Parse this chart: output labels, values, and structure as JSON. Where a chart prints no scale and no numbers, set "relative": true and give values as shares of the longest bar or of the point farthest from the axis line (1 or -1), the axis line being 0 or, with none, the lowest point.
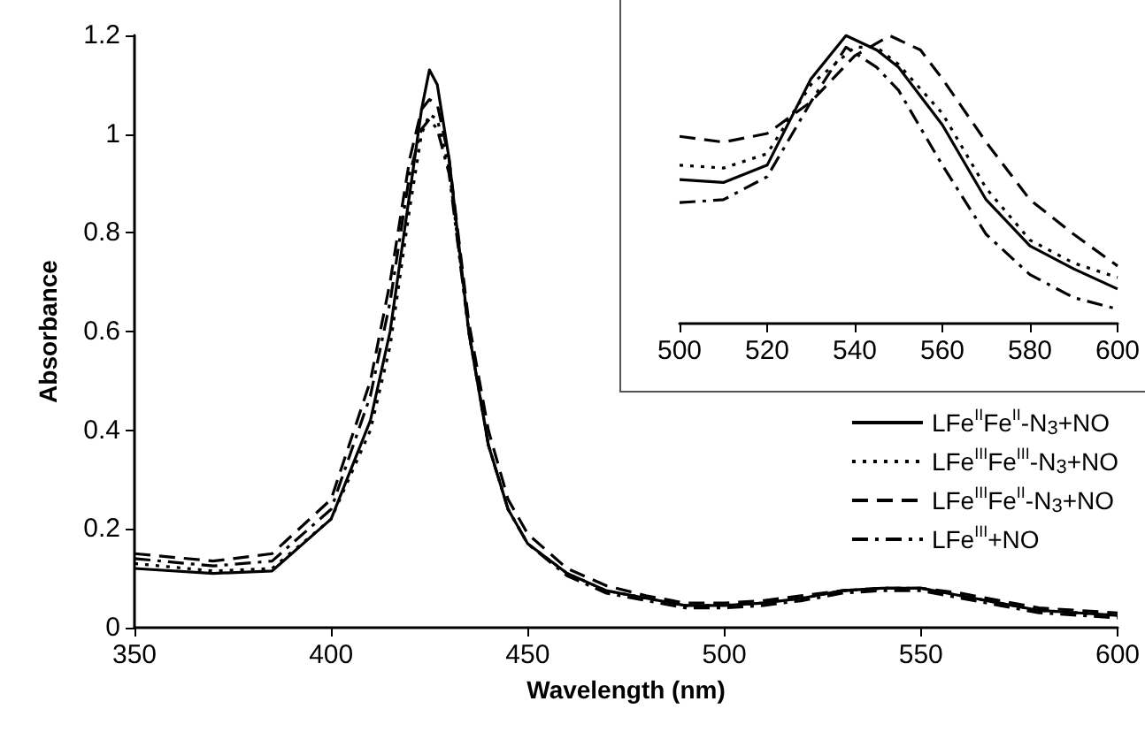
{
  "chart_data": [
    {
      "type": "line",
      "xlabel": "Wavelength (nm)",
      "ylabel": "Absorbance",
      "xlim": [
        350,
        600
      ],
      "xticks": [
        350,
        400,
        450,
        500,
        550,
        600
      ],
      "ylim": [
        0,
        1.2
      ],
      "yticks": [
        0,
        0.2,
        0.4,
        0.6,
        0.8,
        1,
        1.2
      ],
      "legend": "right",
      "marker": "none",
      "x": [
        350,
        370,
        385,
        400,
        410,
        415,
        420,
        423,
        425,
        427,
        430,
        435,
        440,
        445,
        450,
        460,
        470,
        480,
        490,
        500,
        510,
        520,
        530,
        540,
        550,
        560,
        570,
        580,
        590,
        600
      ],
      "series": [
        {
          "name": "LFe$^{II}$Fe$^{II}$-N$_{3}$+NO",
          "color": "#000000",
          "line_style": "solid",
          "values": [
            0.12,
            0.11,
            0.115,
            0.22,
            0.42,
            0.6,
            0.88,
            1.05,
            1.13,
            1.1,
            0.95,
            0.6,
            0.37,
            0.24,
            0.17,
            0.11,
            0.075,
            0.06,
            0.045,
            0.045,
            0.05,
            0.06,
            0.075,
            0.08,
            0.08,
            0.065,
            0.05,
            0.035,
            0.03,
            0.025
          ]
        },
        {
          "name": "LFe$^{III}$Fe$^{III}$-N$_{3}$+NO",
          "color": "#000000",
          "line_style": "dotted",
          "values": [
            0.13,
            0.115,
            0.12,
            0.22,
            0.4,
            0.57,
            0.85,
            1.0,
            1.04,
            1.03,
            0.93,
            0.6,
            0.37,
            0.24,
            0.17,
            0.11,
            0.075,
            0.06,
            0.045,
            0.045,
            0.05,
            0.06,
            0.075,
            0.08,
            0.08,
            0.065,
            0.05,
            0.035,
            0.03,
            0.025
          ]
        },
        {
          "name": "LFe$^{III}$Fe$^{II}$-N$_{3}$+NO",
          "color": "#000000",
          "line_style": "dashed",
          "values": [
            0.15,
            0.135,
            0.15,
            0.26,
            0.5,
            0.7,
            0.95,
            1.05,
            1.07,
            1.06,
            0.95,
            0.62,
            0.4,
            0.26,
            0.19,
            0.12,
            0.085,
            0.065,
            0.05,
            0.05,
            0.055,
            0.065,
            0.075,
            0.08,
            0.08,
            0.07,
            0.055,
            0.04,
            0.035,
            0.03
          ]
        },
        {
          "name": "LFe$^{III}$+NO",
          "color": "#000000",
          "line_style": "dashdot",
          "values": [
            0.14,
            0.125,
            0.135,
            0.24,
            0.47,
            0.66,
            0.92,
            1.01,
            1.03,
            1.01,
            0.92,
            0.6,
            0.37,
            0.24,
            0.17,
            0.105,
            0.07,
            0.055,
            0.04,
            0.04,
            0.045,
            0.055,
            0.07,
            0.075,
            0.075,
            0.06,
            0.045,
            0.03,
            0.025,
            0.02
          ]
        }
      ]
    },
    {
      "type": "line",
      "relative": true,
      "xlim": [
        500,
        600
      ],
      "xticks": [
        500,
        520,
        540,
        560,
        580,
        600
      ],
      "tick_labels": "x",
      "legend": false,
      "marker": "none",
      "series": [
        {
          "color": "#000000",
          "line_style": "solid",
          "x": [
            500,
            510,
            520,
            530,
            538,
            545,
            550,
            560,
            570,
            580,
            590,
            600
          ],
          "values": [
            0.5,
            0.49,
            0.55,
            0.85,
            1,
            0.95,
            0.89,
            0.69,
            0.43,
            0.27,
            0.19,
            0.12
          ]
        },
        {
          "color": "#000000",
          "line_style": "dotted",
          "x": [
            500,
            510,
            520,
            530,
            540,
            545,
            550,
            560,
            570,
            580,
            590,
            600
          ],
          "values": [
            0.55,
            0.54,
            0.59,
            0.83,
            0.96,
            0.96,
            0.9,
            0.73,
            0.47,
            0.29,
            0.21,
            0.16
          ]
        },
        {
          "color": "#000000",
          "line_style": "dashed",
          "x": [
            500,
            510,
            520,
            530,
            540,
            548,
            555,
            560,
            570,
            580,
            590,
            600
          ],
          "values": [
            0.65,
            0.63,
            0.66,
            0.77,
            0.93,
            1,
            0.95,
            0.85,
            0.63,
            0.43,
            0.31,
            0.2
          ]
        },
        {
          "color": "#000000",
          "line_style": "dashdot",
          "x": [
            500,
            510,
            520,
            530,
            538,
            545,
            550,
            560,
            570,
            580,
            590,
            600
          ],
          "values": [
            0.42,
            0.43,
            0.51,
            0.77,
            0.96,
            0.89,
            0.81,
            0.55,
            0.31,
            0.17,
            0.09,
            0.05
          ]
        }
      ]
    }
  ]
}
